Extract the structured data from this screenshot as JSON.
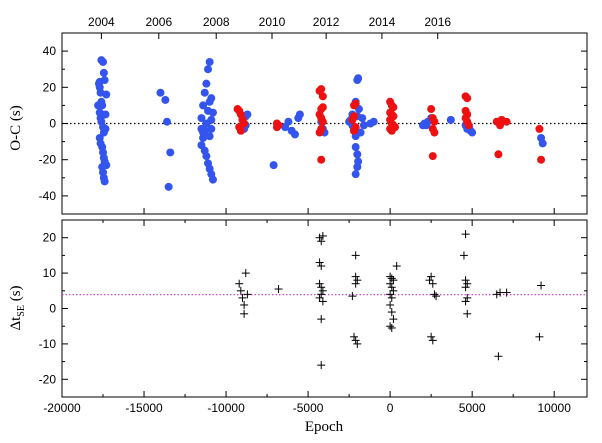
{
  "chart_data": [
    {
      "type": "scatter",
      "id": "top",
      "ylabel": "O-C (s)",
      "xlim": [
        -20000,
        12000
      ],
      "ylim": [
        -50,
        50
      ],
      "yticks": [
        -40,
        -20,
        0,
        20,
        40
      ],
      "top_axis": {
        "label_positions": [
          -17500,
          -14000,
          -10500,
          -7200,
          -3900,
          -500,
          2900,
          6300,
          9500
        ],
        "labels": [
          "2004",
          "2006",
          "2008",
          "2010",
          "2012",
          "2014",
          "2016",
          "",
          ""
        ]
      },
      "top_axis_labels": [
        {
          "x": -17600,
          "text": "2004"
        },
        {
          "x": -14100,
          "text": "2006"
        },
        {
          "x": -10600,
          "text": "2008"
        },
        {
          "x": -7200,
          "text": "2010"
        },
        {
          "x": -3900,
          "text": "2012"
        },
        {
          "x": -500,
          "text": "2014"
        },
        {
          "x": 2900,
          "text": "2016"
        }
      ],
      "zero_line": {
        "y": 0,
        "style": "dotted",
        "color": "#000000"
      },
      "series": [
        {
          "name": "blue",
          "color": "#3355ee",
          "points": [
            [
              -17700,
              23
            ],
            [
              -17600,
              35
            ],
            [
              -17500,
              34
            ],
            [
              -17450,
              28
            ],
            [
              -17400,
              24
            ],
            [
              -17700,
              20
            ],
            [
              -17650,
              17
            ],
            [
              -17600,
              12
            ],
            [
              -17550,
              10
            ],
            [
              -17700,
              6
            ],
            [
              -17650,
              3
            ],
            [
              -17600,
              1
            ],
            [
              -17500,
              -2
            ],
            [
              -17450,
              -5
            ],
            [
              -17700,
              -8
            ],
            [
              -17650,
              -11
            ],
            [
              -17550,
              -13
            ],
            [
              -17500,
              -16
            ],
            [
              -17450,
              -19
            ],
            [
              -17400,
              -21
            ],
            [
              -17550,
              -24
            ],
            [
              -17500,
              -27
            ],
            [
              -17450,
              -30
            ],
            [
              -17400,
              -32
            ],
            [
              -17300,
              -23
            ],
            [
              -17350,
              -3
            ],
            [
              -17800,
              10
            ],
            [
              -17750,
              22
            ],
            [
              -17300,
              16
            ],
            [
              -17350,
              5
            ],
            [
              -14000,
              17
            ],
            [
              -13700,
              13
            ],
            [
              -13600,
              1
            ],
            [
              -13400,
              -16
            ],
            [
              -13500,
              -35
            ],
            [
              -11500,
              3
            ],
            [
              -11400,
              10
            ],
            [
              -11300,
              17
            ],
            [
              -11200,
              22
            ],
            [
              -11100,
              30
            ],
            [
              -11000,
              34
            ],
            [
              -11000,
              12
            ],
            [
              -11100,
              7
            ],
            [
              -11200,
              0
            ],
            [
              -11300,
              -4
            ],
            [
              -11400,
              -8
            ],
            [
              -11500,
              -12
            ],
            [
              -11300,
              -15
            ],
            [
              -11200,
              -18
            ],
            [
              -11100,
              -22
            ],
            [
              -11000,
              -25
            ],
            [
              -10900,
              -28
            ],
            [
              -10800,
              -31
            ],
            [
              -10900,
              -3
            ],
            [
              -11000,
              -7
            ],
            [
              -10900,
              2
            ],
            [
              -10800,
              6
            ],
            [
              -10900,
              14
            ],
            [
              -11500,
              -3
            ],
            [
              -11400,
              -5
            ],
            [
              -9000,
              2
            ],
            [
              -8800,
              4
            ],
            [
              -8700,
              5
            ],
            [
              -8900,
              -3
            ],
            [
              -8800,
              -1
            ],
            [
              -7100,
              -23
            ],
            [
              -6400,
              -2
            ],
            [
              -6200,
              1
            ],
            [
              -6000,
              -4
            ],
            [
              -5800,
              -6
            ],
            [
              -5600,
              3
            ],
            [
              -5500,
              5
            ],
            [
              -4200,
              1
            ],
            [
              -4100,
              -3
            ],
            [
              -4000,
              -5
            ],
            [
              -2500,
              1
            ],
            [
              -2300,
              -1
            ],
            [
              -2200,
              -4
            ],
            [
              -2100,
              -7
            ],
            [
              -2000,
              4
            ],
            [
              -1900,
              8
            ],
            [
              -2100,
              12
            ],
            [
              -2000,
              24
            ],
            [
              -1950,
              25
            ],
            [
              -2100,
              -13
            ],
            [
              -2000,
              -17
            ],
            [
              -1950,
              -21
            ],
            [
              -2000,
              -24
            ],
            [
              -2100,
              -28
            ],
            [
              -2400,
              2
            ],
            [
              -2300,
              5
            ],
            [
              -2200,
              -3
            ],
            [
              -1800,
              -5
            ],
            [
              -1700,
              3
            ],
            [
              -1600,
              -1
            ],
            [
              -1200,
              0
            ],
            [
              -1000,
              1
            ],
            [
              2000,
              -1
            ],
            [
              2100,
              0
            ],
            [
              2200,
              -1
            ],
            [
              2300,
              1
            ],
            [
              2500,
              3
            ],
            [
              3700,
              2
            ],
            [
              4600,
              -1
            ],
            [
              4800,
              -2
            ],
            [
              4900,
              -4
            ],
            [
              5000,
              -5
            ],
            [
              4700,
              -3
            ],
            [
              9200,
              -8
            ],
            [
              9300,
              -11
            ]
          ]
        },
        {
          "name": "red",
          "color": "#ee1111",
          "points": [
            [
              -9300,
              8
            ],
            [
              -9200,
              7
            ],
            [
              -9100,
              5
            ],
            [
              -9000,
              2
            ],
            [
              -8900,
              0
            ],
            [
              -9200,
              -2
            ],
            [
              -9100,
              -4
            ],
            [
              -6900,
              -2
            ],
            [
              -6800,
              -1
            ],
            [
              -6900,
              0
            ],
            [
              -4300,
              18
            ],
            [
              -4200,
              19
            ],
            [
              -4100,
              15
            ],
            [
              -4100,
              9
            ],
            [
              -4200,
              8
            ],
            [
              -4300,
              5
            ],
            [
              -4200,
              3
            ],
            [
              -4100,
              1
            ],
            [
              -4200,
              -3
            ],
            [
              -4300,
              -5
            ],
            [
              -4200,
              -20
            ],
            [
              -2200,
              10
            ],
            [
              -2100,
              11
            ],
            [
              -2200,
              4
            ],
            [
              -2300,
              2
            ],
            [
              -2100,
              -2
            ],
            [
              -2200,
              -4
            ],
            [
              0,
              12
            ],
            [
              100,
              10
            ],
            [
              200,
              9
            ],
            [
              0,
              6
            ],
            [
              100,
              5
            ],
            [
              200,
              4
            ],
            [
              0,
              2
            ],
            [
              100,
              0
            ],
            [
              200,
              -1
            ],
            [
              0,
              -3
            ],
            [
              100,
              -4
            ],
            [
              300,
              -2
            ],
            [
              2500,
              8
            ],
            [
              2600,
              3
            ],
            [
              2700,
              1
            ],
            [
              2600,
              -3
            ],
            [
              2700,
              -5
            ],
            [
              2600,
              -18
            ],
            [
              4600,
              15
            ],
            [
              4700,
              14
            ],
            [
              4600,
              7
            ],
            [
              4700,
              5
            ],
            [
              4600,
              3
            ],
            [
              4700,
              1
            ],
            [
              4800,
              -1
            ],
            [
              6500,
              1
            ],
            [
              6700,
              -1
            ],
            [
              6800,
              2
            ],
            [
              7100,
              1
            ],
            [
              6600,
              -17
            ],
            [
              9100,
              -3
            ],
            [
              9200,
              -20
            ]
          ]
        }
      ]
    },
    {
      "type": "scatter",
      "id": "bottom",
      "xlabel": "Epoch",
      "ylabel_main": "Δt",
      "ylabel_sub": "SE",
      "ylabel_suffix": " (s)",
      "xlim": [
        -20000,
        12000
      ],
      "ylim": [
        -25,
        25
      ],
      "xticks": [
        -20000,
        -15000,
        -10000,
        -5000,
        0,
        5000,
        10000
      ],
      "yticks": [
        -20,
        -10,
        0,
        10,
        20
      ],
      "mean_line": {
        "y": 3.9,
        "style": "dotted",
        "color": "#cc33cc"
      },
      "series": [
        {
          "name": "plus-markers",
          "color": "#000000",
          "points": [
            [
              -9200,
              7
            ],
            [
              -9100,
              5
            ],
            [
              -9000,
              3
            ],
            [
              -8900,
              1
            ],
            [
              -8800,
              10
            ],
            [
              -8700,
              4
            ],
            [
              -8900,
              -1.5
            ],
            [
              -6800,
              5.5
            ],
            [
              -4300,
              20
            ],
            [
              -4200,
              19
            ],
            [
              -4100,
              20.5
            ],
            [
              -4300,
              13
            ],
            [
              -4200,
              12
            ],
            [
              -4300,
              7
            ],
            [
              -4200,
              6
            ],
            [
              -4100,
              5
            ],
            [
              -4200,
              4
            ],
            [
              -4300,
              3
            ],
            [
              -4100,
              2
            ],
            [
              -4200,
              -3
            ],
            [
              -4200,
              -16
            ],
            [
              -2300,
              3.5
            ],
            [
              -2100,
              15
            ],
            [
              -2100,
              9
            ],
            [
              -2000,
              8
            ],
            [
              -2100,
              7
            ],
            [
              -2200,
              -8
            ],
            [
              -2100,
              -9
            ],
            [
              -2000,
              -10
            ],
            [
              0,
              9
            ],
            [
              100,
              8.5
            ],
            [
              200,
              8
            ],
            [
              0,
              7
            ],
            [
              100,
              6
            ],
            [
              200,
              5
            ],
            [
              0,
              4
            ],
            [
              100,
              3
            ],
            [
              0,
              1
            ],
            [
              100,
              -1
            ],
            [
              200,
              -3
            ],
            [
              0,
              -5
            ],
            [
              100,
              -5.5
            ],
            [
              400,
              12
            ],
            [
              2400,
              8
            ],
            [
              2500,
              9
            ],
            [
              2600,
              7
            ],
            [
              2700,
              4
            ],
            [
              2800,
              3.5
            ],
            [
              2500,
              -8
            ],
            [
              2600,
              -9
            ],
            [
              4600,
              21
            ],
            [
              4500,
              15
            ],
            [
              4600,
              8
            ],
            [
              4700,
              7
            ],
            [
              4600,
              6
            ],
            [
              4700,
              3
            ],
            [
              4600,
              2
            ],
            [
              4700,
              -1.5
            ],
            [
              6500,
              4
            ],
            [
              6700,
              4.5
            ],
            [
              7100,
              4.5
            ],
            [
              6600,
              -13.5
            ],
            [
              9200,
              6.5
            ],
            [
              9100,
              -8
            ]
          ]
        }
      ]
    }
  ]
}
